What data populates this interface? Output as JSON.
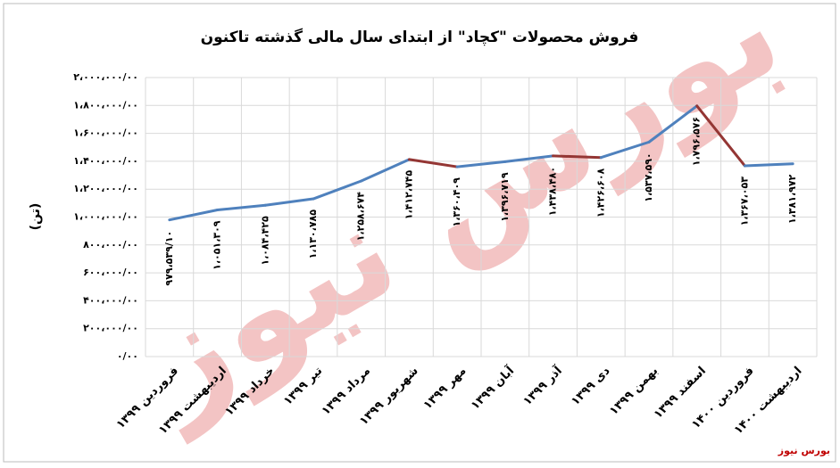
{
  "chart_data": {
    "type": "line",
    "title": "فروش محصولات \"کچاد\" از ابتدای سال مالی گذشته تاکنون",
    "y_label": "(تن)",
    "source": "بورس نیوز",
    "watermark": "بورس نیوز",
    "categories": [
      "فروردین ۱۳۹۹",
      "اردیبهشت ۱۳۹۹",
      "خرداد ۱۳۹۹",
      "تیر ۱۳۹۹",
      "مرداد ۱۳۹۹",
      "شهریور ۱۳۹۹",
      "مهر ۱۳۹۹",
      "آبان ۱۳۹۹",
      "آذر ۱۳۹۹",
      "دی ۱۳۹۹",
      "بهمن ۱۳۹۹",
      "اسفند ۱۳۹۹",
      "فروردین ۱۴۰۰",
      "اردیبهشت ۱۴۰۰"
    ],
    "values": [
      979539.1,
      1051309,
      1084425,
      1130785,
      1258674,
      1412745,
      1360409,
      1396719,
      1438480,
      1426608,
      1537590,
      1796576,
      1367053,
      1381972
    ],
    "value_labels": [
      "۹۷۹،۵۳۹/۱۰",
      "۱،۰۵۱،۳۰۹",
      "۱،۰۸۴،۴۲۵",
      "۱،۱۳۰،۷۸۵",
      "۱،۲۵۸،۶۷۴",
      "۱،۴۱۲،۷۴۵",
      "۱،۳۶۰،۴۰۹",
      "۱،۳۹۶،۷۱۹",
      "۱،۴۳۸،۴۸۰",
      "۱،۴۲۶،۶۰۸",
      "۱،۵۳۷،۵۹۰",
      "۱،۷۹۶،۵۷۶",
      "۱،۳۶۷،۰۵۳",
      "۱،۳۸۱،۹۷۲"
    ],
    "color": "#4f81bd",
    "decrease_color": "#943634",
    "ylim": [
      0,
      2000000
    ],
    "yticks": [
      {
        "value": 0,
        "label": "۰/۰۰"
      },
      {
        "value": 200000,
        "label": "۲۰۰،۰۰۰/۰۰"
      },
      {
        "value": 400000,
        "label": "۴۰۰،۰۰۰/۰۰"
      },
      {
        "value": 600000,
        "label": "۶۰۰،۰۰۰/۰۰"
      },
      {
        "value": 800000,
        "label": "۸۰۰،۰۰۰/۰۰"
      },
      {
        "value": 1000000,
        "label": "۱،۰۰۰،۰۰۰/۰۰"
      },
      {
        "value": 1200000,
        "label": "۱،۲۰۰،۰۰۰/۰۰"
      },
      {
        "value": 1400000,
        "label": "۱،۴۰۰،۰۰۰/۰۰"
      },
      {
        "value": 1600000,
        "label": "۱،۶۰۰،۰۰۰/۰۰"
      },
      {
        "value": 1800000,
        "label": "۱،۸۰۰،۰۰۰/۰۰"
      },
      {
        "value": 2000000,
        "label": "۲،۰۰۰،۰۰۰/۰۰"
      }
    ],
    "grid": true
  }
}
